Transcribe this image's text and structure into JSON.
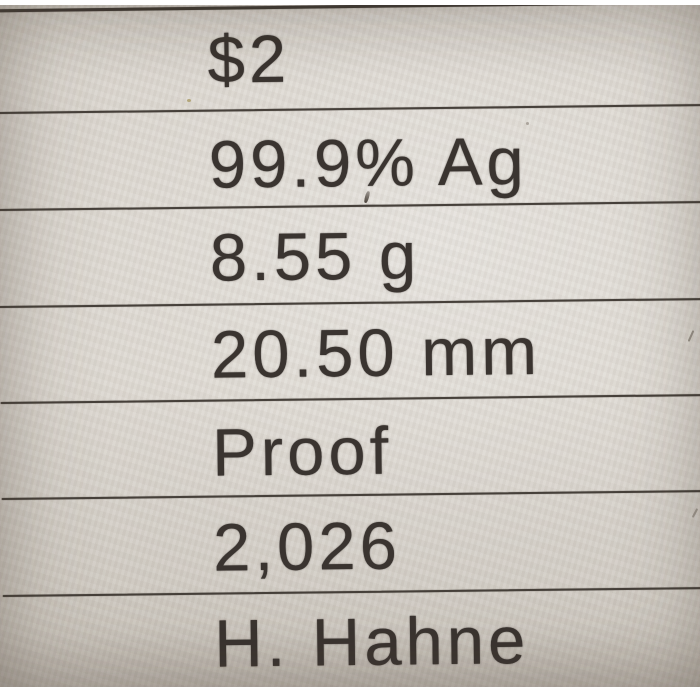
{
  "page": {
    "kind": "photographed printed page of coin specifications",
    "background_color": "#ffffff",
    "paper_color": "#d9d4cc",
    "rule_color": "#46403a",
    "text_color": "#3a3430"
  },
  "specs": {
    "rows": [
      {
        "field": "denomination",
        "text": "$2"
      },
      {
        "field": "composition",
        "text": "99.9% Ag"
      },
      {
        "field": "weight",
        "text": "8.55 g"
      },
      {
        "field": "diameter",
        "text": "20.50 mm"
      },
      {
        "field": "finish",
        "text": "Proof"
      },
      {
        "field": "mintage",
        "text": "2,026"
      },
      {
        "field": "designer",
        "text": "H. Hahne"
      }
    ]
  }
}
